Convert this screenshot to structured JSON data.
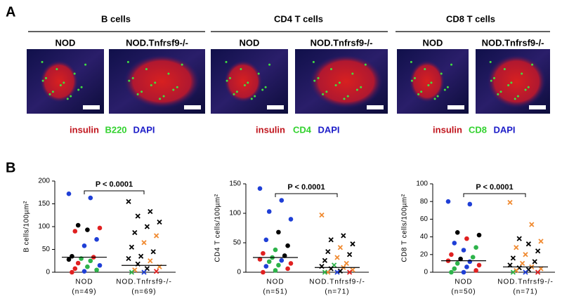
{
  "panel_a": {
    "label": "A",
    "groups": [
      {
        "title": "B cells",
        "samples": [
          "NOD",
          "NOD.Tnfrsf9-/-"
        ],
        "stains": [
          "insulin",
          "B220",
          "DAPI"
        ]
      },
      {
        "title": "CD4 T cells",
        "samples": [
          "NOD",
          "NOD.Tnfrsf9-/-"
        ],
        "stains": [
          "insulin",
          "CD4",
          "DAPI"
        ]
      },
      {
        "title": "CD8 T cells",
        "samples": [
          "NOD",
          "NOD.Tnfrsf9-/-"
        ],
        "stains": [
          "insulin",
          "CD8",
          "DAPI"
        ]
      }
    ]
  },
  "panel_b": {
    "label": "B"
  },
  "chart_data": [
    {
      "type": "strip",
      "ylabel": "B cells/100µm²",
      "ylim": [
        0,
        200
      ],
      "yticks": [
        0,
        50,
        100,
        150,
        200
      ],
      "categories": [
        "NOD",
        "NOD.Tnfrsf9-/-"
      ],
      "n_labels": [
        "(n=49)",
        "(n=69)"
      ],
      "annotation": "P < 0.0001",
      "markers": [
        "circle",
        "cross"
      ],
      "medians": [
        33,
        15
      ],
      "points": [
        {
          "values": [
            172,
            163,
            103,
            97,
            93,
            90,
            72,
            58,
            35,
            33,
            30,
            28,
            25,
            20,
            15,
            12,
            8,
            5,
            2,
            0
          ],
          "colors": [
            "#1f3fd6",
            "#1f3fd6",
            "#000000",
            "#e02020",
            "#000000",
            "#e02020",
            "#1f3fd6",
            "#1f3fd6",
            "#000000",
            "#e02020",
            "#2db34a",
            "#000000",
            "#2db34a",
            "#e02020",
            "#1f3fd6",
            "#2db34a",
            "#e02020",
            "#2db34a",
            "#1f3fd6",
            "#e02020"
          ]
        },
        {
          "values": [
            155,
            133,
            123,
            110,
            100,
            87,
            80,
            65,
            55,
            45,
            35,
            30,
            25,
            18,
            12,
            8,
            5,
            2,
            0,
            0
          ],
          "colors": [
            "#000000",
            "#000000",
            "#000000",
            "#000000",
            "#000000",
            "#000000",
            "#f08a30",
            "#f08a30",
            "#000000",
            "#000000",
            "#000000",
            "#000000",
            "#f08a30",
            "#000000",
            "#f08a30",
            "#000000",
            "#f08a30",
            "#e02020",
            "#1f3fd6",
            "#2db34a"
          ]
        }
      ]
    },
    {
      "type": "strip",
      "ylabel": "CD4 T cells/100µm²",
      "ylim": [
        0,
        150
      ],
      "yticks": [
        0,
        50,
        100,
        150
      ],
      "categories": [
        "NOD",
        "NOD.Tnfrsf9-/-"
      ],
      "n_labels": [
        "(n=51)",
        "(n=71)"
      ],
      "annotation": "P < 0.0001",
      "markers": [
        "circle",
        "cross"
      ],
      "medians": [
        25,
        8
      ],
      "points": [
        {
          "values": [
            142,
            122,
            103,
            90,
            68,
            55,
            45,
            38,
            32,
            28,
            25,
            22,
            20,
            18,
            15,
            12,
            10,
            6,
            3,
            0
          ],
          "colors": [
            "#1f3fd6",
            "#1f3fd6",
            "#1f3fd6",
            "#1f3fd6",
            "#000000",
            "#1f3fd6",
            "#000000",
            "#2db34a",
            "#e02020",
            "#000000",
            "#2db34a",
            "#e02020",
            "#1f3fd6",
            "#2db34a",
            "#e02020",
            "#2db34a",
            "#1f3fd6",
            "#e02020",
            "#2db34a",
            "#e02020"
          ]
        },
        {
          "values": [
            97,
            62,
            55,
            48,
            42,
            35,
            30,
            25,
            20,
            15,
            12,
            10,
            8,
            6,
            4,
            2,
            0,
            0,
            0,
            0
          ],
          "colors": [
            "#f08a30",
            "#000000",
            "#000000",
            "#000000",
            "#f08a30",
            "#000000",
            "#000000",
            "#f08a30",
            "#000000",
            "#f08a30",
            "#2db34a",
            "#000000",
            "#f08a30",
            "#000000",
            "#f08a30",
            "#000000",
            "#f08a30",
            "#e02020",
            "#1f3fd6",
            "#2db34a"
          ]
        }
      ]
    },
    {
      "type": "strip",
      "ylabel": "CD8 T cells/100µm²",
      "ylim": [
        0,
        100
      ],
      "yticks": [
        0,
        20,
        40,
        60,
        80,
        100
      ],
      "categories": [
        "NOD",
        "NOD.Tnfrsf9-/-"
      ],
      "n_labels": [
        "(n=50)",
        "(n=71)"
      ],
      "annotation": "P < 0.0001",
      "markers": [
        "circle",
        "cross"
      ],
      "medians": [
        13,
        6
      ],
      "points": [
        {
          "values": [
            80,
            77,
            45,
            42,
            38,
            33,
            28,
            25,
            20,
            17,
            15,
            13,
            12,
            10,
            8,
            6,
            4,
            2,
            0,
            0
          ],
          "colors": [
            "#1f3fd6",
            "#1f3fd6",
            "#000000",
            "#000000",
            "#e02020",
            "#1f3fd6",
            "#2db34a",
            "#1f3fd6",
            "#e02020",
            "#2db34a",
            "#000000",
            "#e02020",
            "#1f3fd6",
            "#2db34a",
            "#e02020",
            "#1f3fd6",
            "#2db34a",
            "#e02020",
            "#1f3fd6",
            "#2db34a"
          ]
        },
        {
          "values": [
            79,
            54,
            38,
            35,
            32,
            28,
            24,
            20,
            16,
            12,
            10,
            8,
            6,
            5,
            4,
            3,
            2,
            0,
            0,
            0
          ],
          "colors": [
            "#f08a30",
            "#f08a30",
            "#000000",
            "#f08a30",
            "#000000",
            "#f08a30",
            "#000000",
            "#f08a30",
            "#000000",
            "#000000",
            "#f08a30",
            "#000000",
            "#f08a30",
            "#000000",
            "#f08a30",
            "#000000",
            "#f08a30",
            "#e02020",
            "#1f3fd6",
            "#2db34a"
          ]
        }
      ]
    }
  ]
}
